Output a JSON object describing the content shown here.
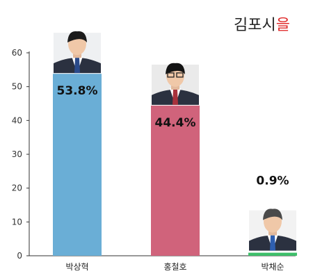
{
  "chart_data": {
    "type": "bar",
    "title": "김포시을",
    "title_main": "김포시",
    "title_accent": "을",
    "categories": [
      "박상혁",
      "홍철호",
      "박채순"
    ],
    "values": [
      53.8,
      44.4,
      0.9
    ],
    "value_labels": [
      "53.8%",
      "44.4%",
      "0.9%"
    ],
    "colors": [
      "#6aaed6",
      "#d0637b",
      "#3ebf6a"
    ],
    "ylim": [
      0,
      60
    ],
    "yticks": [
      0,
      10,
      20,
      30,
      40,
      50,
      60
    ],
    "xlabel": "",
    "ylabel": "",
    "grid": false,
    "portraits": [
      "candidate-photo",
      "candidate-photo",
      "candidate-photo"
    ]
  }
}
